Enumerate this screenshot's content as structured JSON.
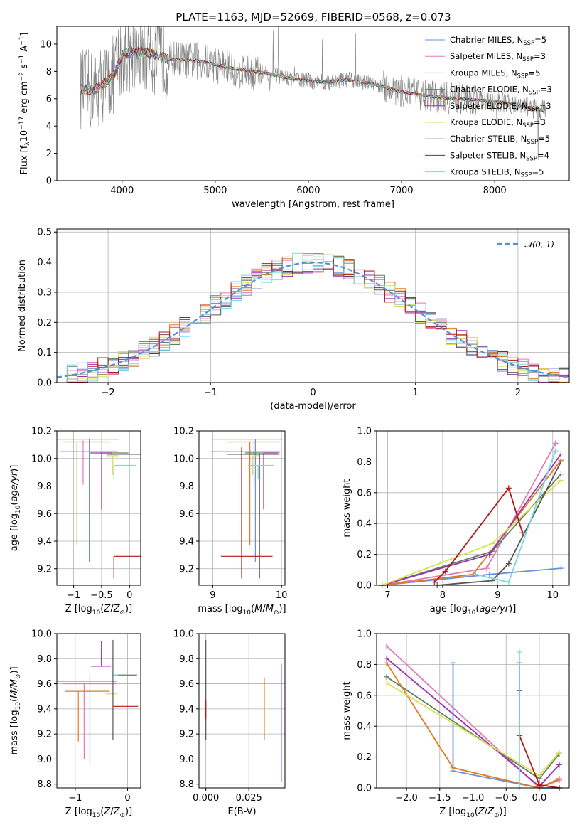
{
  "figure_title": "PLATE=1163, MJD=52669, FIBERID=0568, z=0.073",
  "colors": {
    "chabrier_miles": "#6a8fd8",
    "salpeter_miles": "#e07ab8",
    "kroupa_miles": "#e07a20",
    "chabrier_elodie": "#5f7f5f",
    "salpeter_elodie": "#9a30b0",
    "kroupa_elodie": "#d8e050",
    "chabrier_stelib": "#555555",
    "salpeter_stelib": "#b01818",
    "kroupa_stelib": "#78d8e0",
    "data_spectrum": "#808080",
    "normal_curve": "#5b8bd8"
  },
  "legend_spectrum": [
    {
      "name": "Chabrier MILES, N",
      "sub": "SSP",
      "tail": "=5",
      "color_key": "chabrier_miles"
    },
    {
      "name": "Salpeter MILES, N",
      "sub": "SSP",
      "tail": "=3",
      "color_key": "salpeter_miles"
    },
    {
      "name": "Kroupa MILES, N",
      "sub": "SSP",
      "tail": "=5",
      "color_key": "kroupa_miles"
    },
    {
      "name": "Chabrier ELODIE, N",
      "sub": "SSP",
      "tail": "=3",
      "color_key": "chabrier_elodie"
    },
    {
      "name": "Salpeter ELODIE, N",
      "sub": "SSP",
      "tail": "=3",
      "color_key": "salpeter_elodie"
    },
    {
      "name": "Kroupa ELODIE, N",
      "sub": "SSP",
      "tail": "=3",
      "color_key": "kroupa_elodie"
    },
    {
      "name": "Chabrier STELIB, N",
      "sub": "SSP",
      "tail": "=5",
      "color_key": "chabrier_stelib"
    },
    {
      "name": "Salpeter STELIB, N",
      "sub": "SSP",
      "tail": "=4",
      "color_key": "salpeter_stelib"
    },
    {
      "name": "Kroupa STELIB, N",
      "sub": "SSP",
      "tail": "=5",
      "color_key": "kroupa_stelib"
    }
  ],
  "legend_hist": "𝒩(0, 1)",
  "chart_data": [
    {
      "id": "spectrum",
      "type": "line",
      "xlabel": "wavelength [Angstrom, rest frame]",
      "ylabel": "Flux [f_λ 10^-17 erg cm^-2 s^-1 A^-1]",
      "xlim": [
        3300,
        8800
      ],
      "ylim": [
        0,
        11.3
      ],
      "xticks": [
        4000,
        5000,
        6000,
        7000,
        8000
      ],
      "yticks": [
        0,
        2,
        4,
        6,
        8,
        10
      ],
      "grid": false,
      "legend_position": "upper-right",
      "continuum": {
        "x": [
          3550,
          3700,
          3900,
          4000,
          4100,
          4300,
          4500,
          4800,
          5000,
          5200,
          5400,
          5600,
          5800,
          6000,
          6200,
          6400,
          6600,
          6800,
          7000,
          7200,
          7400,
          7600,
          7800,
          8000,
          8200,
          8400,
          8550
        ],
        "y": [
          6.7,
          6.6,
          7.6,
          9.2,
          9.5,
          9.3,
          8.9,
          8.8,
          8.5,
          8.2,
          8.0,
          7.8,
          7.5,
          7.3,
          7.2,
          7.4,
          7.2,
          6.9,
          6.5,
          6.3,
          6.1,
          6.0,
          5.9,
          5.8,
          5.6,
          5.3,
          5.1
        ]
      }
    },
    {
      "id": "residual-histogram",
      "type": "histogram",
      "xlabel": "(data-model)/error",
      "ylabel": "Normed distribution",
      "xlim": [
        -2.5,
        2.5
      ],
      "ylim": [
        0,
        0.51
      ],
      "xticks": [
        -2,
        -1,
        0,
        1,
        2
      ],
      "yticks": [
        0.0,
        0.1,
        0.2,
        0.3,
        0.4,
        0.5
      ],
      "grid": true,
      "legend_position": "upper-right",
      "bin_width": 0.1,
      "bin_start": -2.5,
      "reference_curve": {
        "mean": 0,
        "sigma": 1
      }
    },
    {
      "id": "age-vs-Z",
      "type": "scatter",
      "xlabel": "Z [log10(Z/Z⊙)]",
      "ylabel": "age [log10(age/yr)]",
      "xlim": [
        -1.3,
        0.2
      ],
      "ylim": [
        9.08,
        10.2
      ],
      "xticks": [
        -1,
        -0.5,
        0
      ],
      "yticks": [
        9.2,
        9.4,
        9.6,
        9.8,
        10.0,
        10.2
      ],
      "points": [
        {
          "color_key": "chabrier_miles",
          "x": -0.72,
          "y": 10.14,
          "xerr": [
            0.82,
            0.52
          ],
          "yerr": [
            0.89,
            0.0
          ]
        },
        {
          "color_key": "salpeter_miles",
          "x": -0.83,
          "y": 10.05,
          "xerr": [
            0.42,
            0.62
          ],
          "yerr": [
            0.24,
            0.08
          ]
        },
        {
          "color_key": "kroupa_miles",
          "x": -0.94,
          "y": 10.12,
          "xerr": [
            0.26,
            0.6
          ],
          "yerr": [
            0.75,
            0.0
          ]
        },
        {
          "color_key": "chabrier_elodie",
          "x": -0.22,
          "y": 10.04,
          "xerr": [
            0.3,
            0.2
          ],
          "yerr": [
            0.0,
            0.0
          ]
        },
        {
          "color_key": "salpeter_elodie",
          "x": -0.5,
          "y": 10.04,
          "xerr": [
            0.2,
            0.18
          ],
          "yerr": [
            0.41,
            0.0
          ]
        },
        {
          "color_key": "kroupa_elodie",
          "x": -0.3,
          "y": 10.02,
          "xerr": [
            0.12,
            0.1
          ],
          "yerr": [
            0.14,
            0.0
          ]
        },
        {
          "color_key": "chabrier_stelib",
          "x": -0.2,
          "y": 10.03,
          "xerr": [
            0.2,
            0.4
          ],
          "yerr": [
            0.0,
            0.0
          ]
        },
        {
          "color_key": "salpeter_stelib",
          "x": -0.28,
          "y": 9.29,
          "xerr": [
            0.0,
            0.48
          ],
          "yerr": [
            0.16,
            0.0
          ]
        },
        {
          "color_key": "kroupa_stelib",
          "x": -0.28,
          "y": 9.95,
          "xerr": [
            0.0,
            0.4
          ],
          "yerr": [
            0.1,
            0.0
          ]
        }
      ]
    },
    {
      "id": "age-vs-mass",
      "type": "scatter",
      "xlabel": "mass [log10(M/M⊙)]",
      "ylabel": "",
      "xlim": [
        8.8,
        10.05
      ],
      "ylim": [
        9.08,
        10.2
      ],
      "xticks": [
        9,
        10
      ],
      "yticks": [
        9.2,
        9.4,
        9.6,
        9.8,
        10.0,
        10.2
      ],
      "points": [
        {
          "color_key": "chabrier_miles",
          "x": 9.62,
          "y": 10.14,
          "xerr": [
            0.62,
            0.4
          ],
          "yerr": [
            0.89,
            0.0
          ]
        },
        {
          "color_key": "salpeter_miles",
          "x": 9.6,
          "y": 10.05,
          "xerr": [
            0.62,
            0.38
          ],
          "yerr": [
            0.24,
            0.08
          ]
        },
        {
          "color_key": "kroupa_miles",
          "x": 9.54,
          "y": 10.12,
          "xerr": [
            0.34,
            0.44
          ],
          "yerr": [
            0.75,
            0.0
          ]
        },
        {
          "color_key": "chabrier_elodie",
          "x": 9.67,
          "y": 10.04,
          "xerr": [
            0.2,
            0.3
          ],
          "yerr": [
            0.0,
            0.0
          ]
        },
        {
          "color_key": "salpeter_elodie",
          "x": 9.74,
          "y": 10.04,
          "xerr": [
            0.0,
            0.2
          ],
          "yerr": [
            0.41,
            0.0
          ]
        },
        {
          "color_key": "kroupa_elodie",
          "x": 9.58,
          "y": 10.02,
          "xerr": [
            0.0,
            0.1
          ],
          "yerr": [
            0.14,
            0.0
          ]
        },
        {
          "color_key": "chabrier_stelib",
          "x": 9.68,
          "y": 10.03,
          "xerr": [
            0.47,
            0.29
          ],
          "yerr": [
            0.9,
            0.0
          ]
        },
        {
          "color_key": "salpeter_stelib",
          "x": 9.42,
          "y": 9.29,
          "xerr": [
            0.3,
            0.45
          ],
          "yerr": [
            0.16,
            0.79
          ]
        },
        {
          "color_key": "kroupa_stelib",
          "x": 9.66,
          "y": 9.95,
          "xerr": [
            0.15,
            0.22
          ],
          "yerr": [
            0.1,
            0.0
          ]
        }
      ]
    },
    {
      "id": "mass-weight-vs-age",
      "type": "line",
      "xlabel": "age [log10(age/yr)]",
      "ylabel": "mass weight",
      "xlim": [
        6.8,
        10.3
      ],
      "ylim": [
        0,
        1.0
      ],
      "xticks": [
        7,
        8,
        9,
        10
      ],
      "yticks": [
        0.0,
        0.2,
        0.4,
        0.6,
        0.8,
        1.0
      ],
      "grid": true,
      "series": [
        {
          "color_key": "chabrier_miles",
          "x": [
            6.9,
            8.85,
            10.15
          ],
          "y": [
            0.0,
            0.07,
            0.11
          ]
        },
        {
          "color_key": "salpeter_miles",
          "x": [
            6.9,
            8.8,
            10.05
          ],
          "y": [
            0.0,
            0.11,
            0.92
          ]
        },
        {
          "color_key": "kroupa_miles",
          "x": [
            6.9,
            8.55,
            10.15
          ],
          "y": [
            0.0,
            0.07,
            0.81
          ]
        },
        {
          "color_key": "chabrier_elodie",
          "x": [
            6.9,
            8.9,
            10.15
          ],
          "y": [
            0.0,
            0.22,
            0.72
          ]
        },
        {
          "color_key": "salpeter_elodie",
          "x": [
            6.9,
            8.85,
            10.15
          ],
          "y": [
            0.0,
            0.2,
            0.85
          ]
        },
        {
          "color_key": "kroupa_elodie",
          "x": [
            6.9,
            8.9,
            10.15
          ],
          "y": [
            0.0,
            0.27,
            0.68
          ]
        },
        {
          "color_key": "chabrier_stelib",
          "x": [
            7.9,
            8.9,
            9.2,
            10.15
          ],
          "y": [
            0.0,
            0.03,
            0.14,
            0.8
          ]
        },
        {
          "color_key": "salpeter_stelib",
          "x": [
            7.85,
            8.05,
            9.2,
            9.45
          ],
          "y": [
            0.02,
            0.09,
            0.63,
            0.34
          ]
        },
        {
          "color_key": "kroupa_stelib",
          "x": [
            8.6,
            9.2,
            10.05
          ],
          "y": [
            0.07,
            0.02,
            0.87
          ]
        }
      ]
    },
    {
      "id": "mass-vs-Z",
      "type": "scatter",
      "xlabel": "Z [log10(Z/Z⊙)]",
      "ylabel": "mass [log10(M/M⊙)]",
      "xlim": [
        -1.35,
        0.25
      ],
      "ylim": [
        8.77,
        10.0
      ],
      "xticks": [
        -1,
        0
      ],
      "yticks": [
        8.8,
        9.0,
        9.2,
        9.4,
        9.6,
        9.8,
        10.0
      ],
      "points": [
        {
          "color_key": "chabrier_miles",
          "x": -0.72,
          "y": 9.62,
          "xerr": [
            0.82,
            0.52
          ],
          "yerr": [
            0.66,
            0.06
          ]
        },
        {
          "color_key": "salpeter_miles",
          "x": -0.83,
          "y": 9.6,
          "xerr": [
            0.42,
            0.62
          ],
          "yerr": [
            0.6,
            0.0
          ]
        },
        {
          "color_key": "kroupa_miles",
          "x": -0.94,
          "y": 9.54,
          "xerr": [
            0.26,
            0.6
          ],
          "yerr": [
            0.4,
            0.0
          ]
        },
        {
          "color_key": "chabrier_elodie",
          "x": -0.22,
          "y": 9.67,
          "xerr": [
            0.08,
            0.4
          ],
          "yerr": [
            0.0,
            0.0
          ]
        },
        {
          "color_key": "salpeter_elodie",
          "x": -0.5,
          "y": 9.74,
          "xerr": [
            0.2,
            0.18
          ],
          "yerr": [
            0.0,
            0.2
          ]
        },
        {
          "color_key": "kroupa_elodie",
          "x": -0.3,
          "y": 9.52,
          "xerr": [
            0.12,
            0.1
          ],
          "yerr": [
            0.0,
            0.0
          ]
        },
        {
          "color_key": "chabrier_stelib",
          "x": -0.28,
          "y": 9.55,
          "xerr": [
            0.0,
            0.0
          ],
          "yerr": [
            0.4,
            0.4
          ]
        },
        {
          "color_key": "salpeter_stelib",
          "x": -0.28,
          "y": 9.42,
          "xerr": [
            0.0,
            0.48
          ],
          "yerr": [
            0.0,
            0.0
          ]
        },
        {
          "color_key": "kroupa_stelib",
          "x": -0.28,
          "y": 9.67,
          "xerr": [
            0.0,
            0.1
          ],
          "yerr": [
            0.0,
            0.0
          ]
        }
      ]
    },
    {
      "id": "mass-vs-ebv",
      "type": "scatter",
      "xlabel": "E(B-V)",
      "ylabel": "",
      "xlim": [
        -0.004,
        0.046
      ],
      "ylim": [
        8.77,
        10.0
      ],
      "xticks": [
        0.0,
        0.025
      ],
      "xticklabels": [
        "0.000",
        "0.025"
      ],
      "yticks": [
        8.8,
        9.0,
        9.2,
        9.4,
        9.6,
        9.8,
        10.0
      ],
      "points": [
        {
          "color_key": "chabrier_stelib",
          "x": 0.0,
          "y": 9.55,
          "xerr": [
            0.0,
            0.0
          ],
          "yerr": [
            0.4,
            0.4
          ]
        },
        {
          "color_key": "salpeter_stelib",
          "x": 0.0,
          "y": 9.42,
          "xerr": [
            0.0,
            0.0
          ],
          "yerr": [
            0.1,
            0.05
          ]
        },
        {
          "color_key": "kroupa_miles",
          "x": 0.034,
          "y": 9.4,
          "xerr": [
            0.0,
            0.0
          ],
          "yerr": [
            0.25,
            0.25
          ]
        },
        {
          "color_key": "salpeter_miles",
          "x": 0.044,
          "y": 9.3,
          "xerr": [
            0.0,
            0.0
          ],
          "yerr": [
            0.48,
            0.46
          ]
        }
      ]
    },
    {
      "id": "mass-weight-vs-Z",
      "type": "line",
      "xlabel": "Z [log10(Z/Z⊙)]",
      "ylabel": "mass weight",
      "xlim": [
        -2.45,
        0.45
      ],
      "ylim": [
        0,
        1.0
      ],
      "xticks": [
        -2.0,
        -1.5,
        -1.0,
        -0.5,
        0.0
      ],
      "xticklabels": [
        "−2.0",
        "−1.5",
        "−1.0",
        "−0.5",
        "0.0"
      ],
      "yticks": [
        0.0,
        0.2,
        0.4,
        0.6,
        0.8,
        1.0
      ],
      "grid": true,
      "series": [
        {
          "color_key": "chabrier_miles",
          "x": [
            -1.3,
            -1.3,
            0.0,
            0.3
          ],
          "y": [
            0.81,
            0.11,
            0.0,
            0.0
          ]
        },
        {
          "color_key": "salpeter_miles",
          "x": [
            -2.3,
            0.0,
            0.3
          ],
          "y": [
            0.92,
            0.0,
            0.05
          ]
        },
        {
          "color_key": "kroupa_miles",
          "x": [
            -2.3,
            -1.3,
            0.0,
            0.3
          ],
          "y": [
            0.81,
            0.13,
            0.0,
            0.06
          ]
        },
        {
          "color_key": "chabrier_elodie",
          "x": [
            -2.3,
            0.0,
            0.3
          ],
          "y": [
            0.72,
            0.06,
            0.22
          ]
        },
        {
          "color_key": "salpeter_elodie",
          "x": [
            -2.3,
            0.0,
            0.3
          ],
          "y": [
            0.84,
            0.01,
            0.15
          ]
        },
        {
          "color_key": "kroupa_elodie",
          "x": [
            -2.3,
            0.0,
            0.3
          ],
          "y": [
            0.68,
            0.08,
            0.23
          ]
        },
        {
          "color_key": "chabrier_stelib",
          "x": [
            -0.3,
            -0.3,
            -0.3
          ],
          "y": [
            0.81,
            0.63,
            0.34
          ]
        },
        {
          "color_key": "salpeter_stelib",
          "x": [
            -0.3,
            0.0,
            0.3
          ],
          "y": [
            0.34,
            0.02,
            0.0
          ]
        },
        {
          "color_key": "kroupa_stelib",
          "x": [
            -0.3,
            -0.3
          ],
          "y": [
            0.88,
            0.0
          ]
        }
      ]
    }
  ]
}
